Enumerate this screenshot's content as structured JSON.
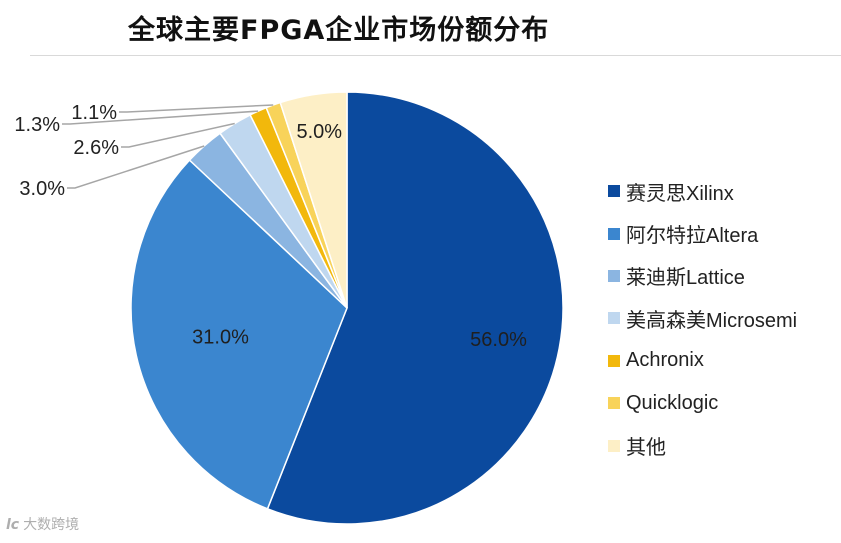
{
  "chart_data": {
    "type": "pie",
    "title": "全球主要FPGA企业市场份额分布",
    "legend_position": "right",
    "slices": [
      {
        "name": "赛灵思Xilinx",
        "value": 56.0,
        "label": "56.0%",
        "color": "#0b4a9e"
      },
      {
        "name": "阿尔特拉Altera",
        "value": 31.0,
        "label": "31.0%",
        "color": "#3b86cf"
      },
      {
        "name": "莱迪斯Lattice",
        "value": 3.0,
        "label": "3.0%",
        "color": "#8bb5e1"
      },
      {
        "name": "美高森美Microsemi",
        "value": 2.6,
        "label": "2.6%",
        "color": "#bfd7ef"
      },
      {
        "name": "Achronix",
        "value": 1.3,
        "label": "1.3%",
        "color": "#f2b80c"
      },
      {
        "name": "Quicklogic",
        "value": 1.1,
        "label": "1.1%",
        "color": "#f8d35a"
      },
      {
        "name": "其他",
        "value": 5.0,
        "label": "5.0%",
        "color": "#fdefc6"
      }
    ]
  },
  "watermark": {
    "logo": "lc",
    "text": "大数跨境"
  }
}
